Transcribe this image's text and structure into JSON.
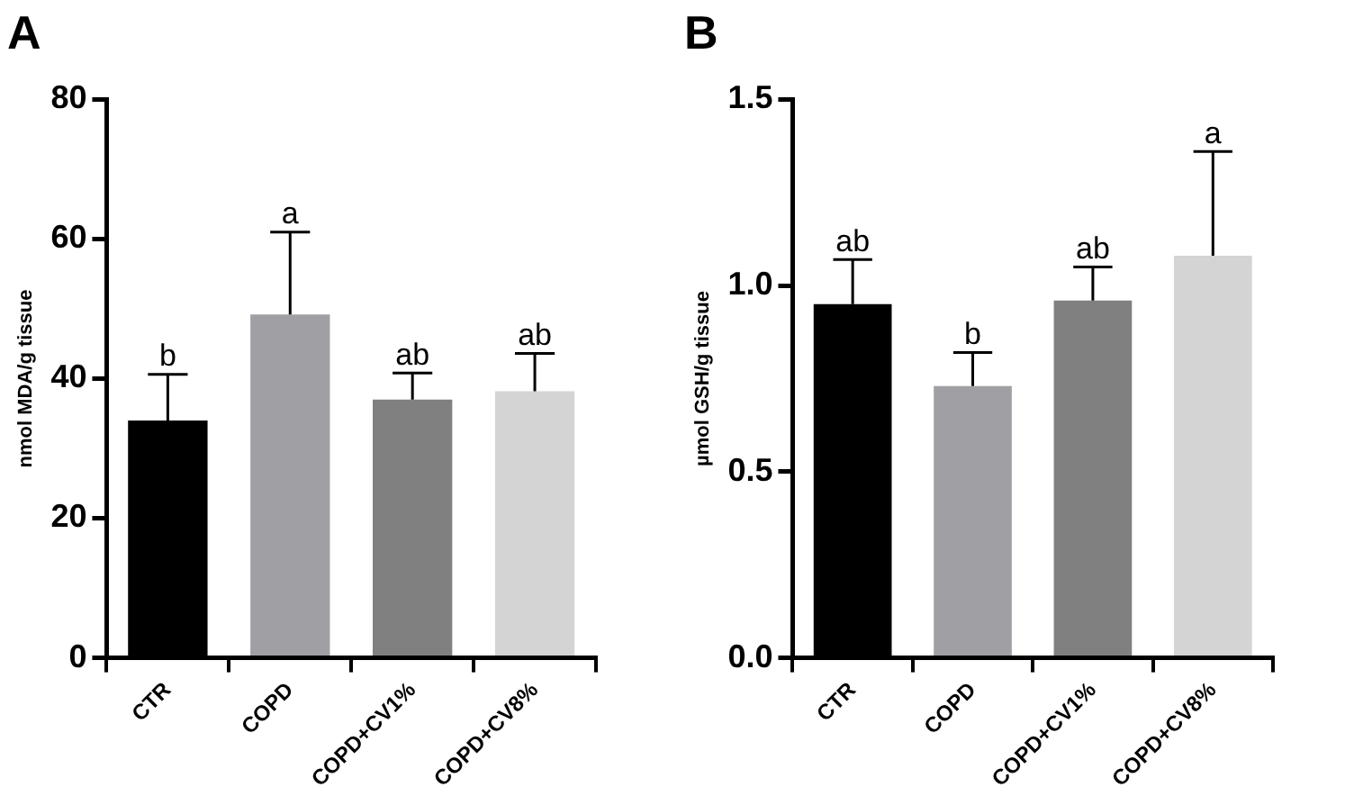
{
  "chart_data": [
    {
      "type": "bar",
      "title": "A",
      "ylabel": "nmol MDA/g tissue",
      "categories": [
        "CTR",
        "COPD",
        "COPD+CV1%",
        "COPD+CV8%"
      ],
      "values": [
        34,
        49.2,
        37,
        38.2
      ],
      "colors": [
        "#000000",
        "#a0a0a4",
        "#808080",
        "#d4d4d4"
      ],
      "errors": [
        [
          34,
          40.6
        ],
        [
          49.2,
          61
        ],
        [
          37,
          40.8
        ],
        [
          38.2,
          43.6
        ]
      ],
      "ylim": [
        0,
        80
      ],
      "yticks": [
        0,
        20,
        40,
        60,
        80
      ],
      "annotations": [
        {
          "text": "b",
          "x": "CTR",
          "y": 40.6
        },
        {
          "text": "a",
          "x": "COPD",
          "y": 61
        },
        {
          "text": "ab",
          "x": "COPD+CV1%",
          "y": 40.8
        },
        {
          "text": "ab",
          "x": "COPD+CV8%",
          "y": 43.6
        }
      ]
    },
    {
      "type": "bar",
      "title": "B",
      "ylabel": "µmol GSH/g tissue",
      "categories": [
        "CTR",
        "COPD",
        "COPD+CV1%",
        "COPD+CV8%"
      ],
      "values": [
        0.95,
        0.73,
        0.96,
        1.08
      ],
      "colors": [
        "#000000",
        "#a0a0a4",
        "#808080",
        "#d4d4d4"
      ],
      "errors": [
        [
          0.95,
          1.07
        ],
        [
          0.73,
          0.82
        ],
        [
          0.96,
          1.05
        ],
        [
          1.08,
          1.36
        ]
      ],
      "ylim": [
        0,
        1.5
      ],
      "yticks": [
        {
          "value": 0,
          "label": "0.0"
        },
        {
          "value": 0.5,
          "label": "0.5"
        },
        {
          "value": 1,
          "label": "1.0"
        },
        {
          "value": 1.5,
          "label": "1.5"
        }
      ],
      "annotations": [
        {
          "text": "ab",
          "x": "CTR",
          "y": 1.07
        },
        {
          "text": "b",
          "x": "COPD",
          "y": 0.82
        },
        {
          "text": "ab",
          "x": "COPD+CV1%",
          "y": 1.05
        },
        {
          "text": "a",
          "x": "COPD+CV8%",
          "y": 1.36
        }
      ]
    }
  ]
}
